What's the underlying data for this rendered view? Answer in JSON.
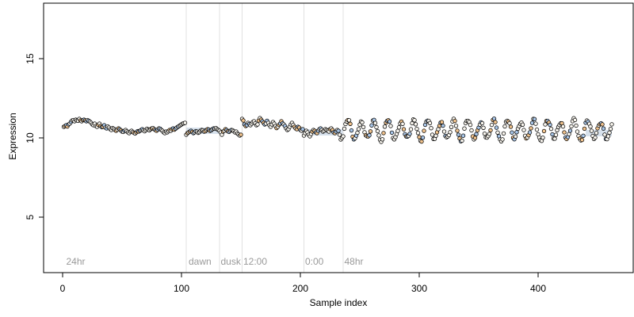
{
  "chart_data": {
    "type": "scatter",
    "title": "",
    "xlabel": "Sample index",
    "ylabel": "Expression",
    "xlim": [
      -16,
      480
    ],
    "ylim": [
      1.5,
      18.5
    ],
    "x_ticks": [
      0,
      100,
      200,
      300,
      400
    ],
    "y_ticks": [
      5,
      10,
      15
    ],
    "grid": false,
    "legend": "none",
    "colors": {
      "point_stroke": "#000000",
      "light": "#f8f5ee",
      "orange": "#f2c48e",
      "blue": "#a9c6e8",
      "line": "#e1e1e1",
      "band": "#b7c9dd"
    },
    "regions": [
      {
        "label": "24hr",
        "x": 3
      },
      {
        "label": "dawn",
        "x": 106
      },
      {
        "label": "dusk",
        "x": 133
      },
      {
        "label": "12:00",
        "x": 152
      },
      {
        "label": "0:00",
        "x": 204
      },
      {
        "label": "48hr",
        "x": 237
      }
    ],
    "vertical_lines": [
      104,
      132,
      151,
      203,
      236
    ],
    "bands": [
      {
        "x0": 104,
        "x1": 132,
        "y": 10.45
      },
      {
        "x0": 203,
        "x1": 236,
        "y": 10.35
      },
      {
        "x0": 440,
        "x1": 462,
        "y": 10.3
      }
    ],
    "segments": [
      {
        "x_start": 1,
        "x_end": 103,
        "values": [
          10.7,
          10.75,
          10.8,
          10.72,
          10.85,
          10.9,
          11.0,
          11.1,
          11.12,
          11.05,
          11.15,
          11.1,
          11.08,
          11.2,
          11.1,
          11.05,
          11.12,
          11.15,
          11.1,
          11.05,
          11.12,
          11.08,
          11.02,
          10.95,
          10.85,
          10.8,
          10.9,
          10.75,
          10.7,
          10.82,
          10.9,
          10.75,
          10.68,
          10.7,
          10.8,
          10.65,
          10.6,
          10.72,
          10.65,
          10.55,
          10.5,
          10.62,
          10.58,
          10.5,
          10.45,
          10.52,
          10.6,
          10.55,
          10.48,
          10.4,
          10.38,
          10.45,
          10.5,
          10.42,
          10.35,
          10.3,
          10.4,
          10.45,
          10.38,
          10.32,
          10.28,
          10.35,
          10.42,
          10.4,
          10.45,
          10.5,
          10.55,
          10.48,
          10.42,
          10.5,
          10.58,
          10.52,
          10.48,
          10.55,
          10.6,
          10.62,
          10.55,
          10.5,
          10.45,
          10.52,
          10.6,
          10.58,
          10.5,
          10.45,
          10.35,
          10.3,
          10.4,
          10.35,
          10.42,
          10.5,
          10.45,
          10.55,
          10.6,
          10.52,
          10.58,
          10.65,
          10.7,
          10.75,
          10.8,
          10.85,
          10.9,
          10.92,
          10.95
        ]
      },
      {
        "x_start": 104,
        "x_end": 150,
        "values": [
          10.2,
          10.3,
          10.35,
          10.4,
          10.45,
          10.38,
          10.3,
          10.35,
          10.42,
          10.4,
          10.32,
          10.36,
          10.45,
          10.5,
          10.48,
          10.4,
          10.42,
          10.5,
          10.55,
          10.52,
          10.45,
          10.48,
          10.55,
          10.6,
          10.58,
          10.62,
          10.55,
          10.5,
          10.45,
          10.35,
          10.2,
          10.4,
          10.45,
          10.55,
          10.5,
          10.42,
          10.38,
          10.45,
          10.5,
          10.48,
          10.42,
          10.35,
          10.4,
          10.28,
          10.22,
          10.15,
          10.2
        ]
      },
      {
        "x_start": 151,
        "x_end": 202,
        "values": [
          11.2,
          11.1,
          10.85,
          10.75,
          10.8,
          10.95,
          10.88,
          10.8,
          10.9,
          11.0,
          11.05,
          10.92,
          10.8,
          10.85,
          11.1,
          11.25,
          11.15,
          11.05,
          10.95,
          10.85,
          10.9,
          11.08,
          10.95,
          10.8,
          10.7,
          10.85,
          11.0,
          10.9,
          10.75,
          10.62,
          10.7,
          10.82,
          10.9,
          11.05,
          10.92,
          10.85,
          10.75,
          10.6,
          10.5,
          10.55,
          10.7,
          10.85,
          10.95,
          10.82,
          10.7,
          10.6,
          10.55,
          10.7,
          10.65,
          10.5,
          10.45,
          10.55
        ]
      },
      {
        "x_start": 203,
        "x_end": 236,
        "values": [
          10.15,
          10.3,
          10.45,
          10.35,
          10.2,
          10.1,
          10.25,
          10.4,
          10.5,
          10.45,
          10.35,
          10.3,
          10.45,
          10.55,
          10.6,
          10.5,
          10.4,
          10.45,
          10.55,
          10.5,
          10.45,
          10.4,
          10.55,
          10.6,
          10.5,
          10.35,
          10.3,
          10.4,
          10.5,
          10.45,
          10.2,
          9.9,
          10.0,
          10.1
        ]
      },
      {
        "x_start": 237,
        "x_end": 462,
        "wave": {
          "mean": 10.5,
          "amplitude": 0.58,
          "period": 11.2
        }
      }
    ]
  }
}
